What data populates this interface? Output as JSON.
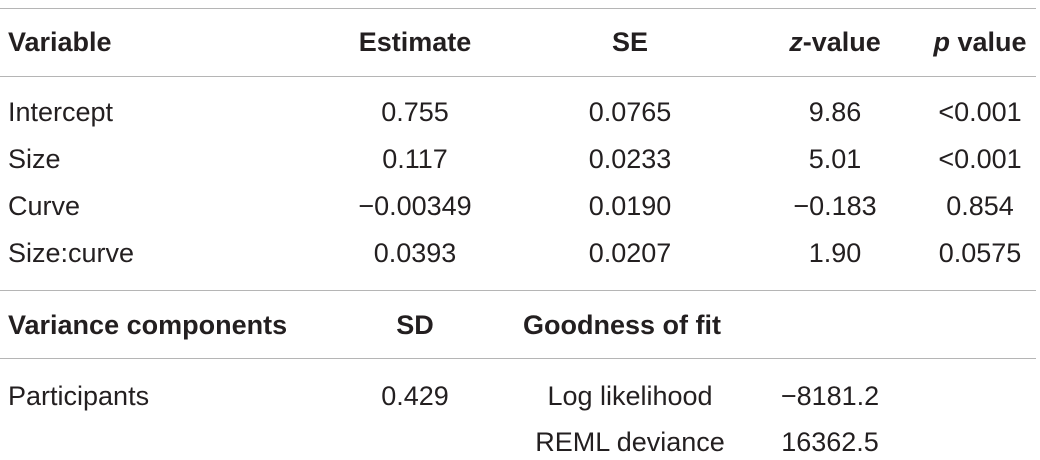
{
  "fixed_effects": {
    "headers": {
      "variable": "Variable",
      "estimate": "Estimate",
      "se": "SE",
      "z_italic": "z",
      "z_rest": "-value",
      "p_italic": "p",
      "p_rest": " value"
    },
    "rows": [
      {
        "variable": "Intercept",
        "estimate": "0.755",
        "se": "0.0765",
        "z": "9.86",
        "p": "<0.001"
      },
      {
        "variable": "Size",
        "estimate": "0.117",
        "se": "0.0233",
        "z": "5.01",
        "p": "<0.001"
      },
      {
        "variable": "Curve",
        "estimate": "−0.00349",
        "se": "0.0190",
        "z": "−0.183",
        "p": "0.854"
      },
      {
        "variable": "Size:curve",
        "estimate": "0.0393",
        "se": "0.0207",
        "z": "1.90",
        "p": "0.0575"
      }
    ]
  },
  "random_effects": {
    "headers": {
      "variance_components": "Variance components",
      "sd": "SD",
      "goodness_of_fit": "Goodness of fit"
    },
    "rows": [
      {
        "component": "Participants",
        "sd": "0.429",
        "fit_label": "Log likelihood",
        "fit_value": "−8181.2"
      },
      {
        "component": "",
        "sd": "",
        "fit_label": "REML deviance",
        "fit_value": "16362.5"
      }
    ]
  }
}
